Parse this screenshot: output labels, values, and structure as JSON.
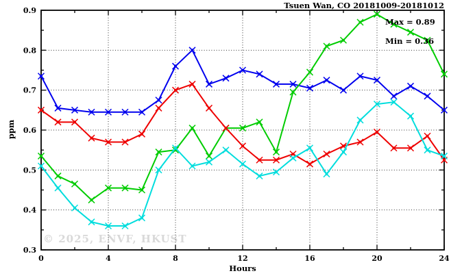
{
  "title": "Tsuen Wan, CO 20181009-20181012",
  "watermark": "© 2025, ENVF, HKUST",
  "chart_data": {
    "type": "line",
    "title": "Tsuen Wan, CO 20181009-20181012",
    "xlabel": "Hours",
    "ylabel": "ppm",
    "xlim": [
      0,
      24
    ],
    "ylim": [
      0.3,
      0.9
    ],
    "x_major_ticks": [
      0,
      4,
      8,
      12,
      16,
      20,
      24
    ],
    "x_minor_interval": 2,
    "y_major_ticks": [
      0.3,
      0.4,
      0.5,
      0.6,
      0.7,
      0.8,
      0.9
    ],
    "y_minor_interval": 0.05,
    "grid": {
      "style": "dotted",
      "x_at": [
        4,
        8,
        12,
        16,
        20
      ],
      "y_at": [
        0.4,
        0.5,
        0.6,
        0.7,
        0.8
      ]
    },
    "legend_position": "none",
    "annotations": {
      "max_text": "Max = 0.89",
      "min_text": "Min = 0.36",
      "max_value": 0.89,
      "min_value": 0.36
    },
    "x": [
      0,
      1,
      2,
      3,
      4,
      5,
      6,
      7,
      8,
      9,
      10,
      11,
      12,
      13,
      14,
      15,
      16,
      17,
      18,
      19,
      20,
      21,
      22,
      23,
      24
    ],
    "series": [
      {
        "name": "blue",
        "color": "#0000ee",
        "values": [
          0.735,
          0.655,
          0.65,
          0.645,
          0.645,
          0.645,
          0.645,
          0.675,
          0.76,
          0.8,
          0.715,
          0.73,
          0.75,
          0.74,
          0.715,
          0.715,
          0.705,
          0.725,
          0.7,
          0.735,
          0.725,
          0.685,
          0.71,
          0.685,
          0.65
        ]
      },
      {
        "name": "green",
        "color": "#00cc00",
        "values": [
          0.535,
          0.485,
          0.465,
          0.425,
          0.455,
          0.455,
          0.45,
          0.545,
          0.55,
          0.605,
          0.535,
          0.605,
          0.605,
          0.62,
          0.545,
          0.695,
          0.745,
          0.81,
          0.825,
          0.87,
          0.89,
          0.865,
          0.845,
          0.825,
          0.74
        ]
      },
      {
        "name": "red",
        "color": "#ee0000",
        "values": [
          0.65,
          0.62,
          0.62,
          0.58,
          0.57,
          0.57,
          0.59,
          0.655,
          0.7,
          0.715,
          0.655,
          0.605,
          0.56,
          0.525,
          0.525,
          0.54,
          0.515,
          0.54,
          0.56,
          0.57,
          0.595,
          0.555,
          0.555,
          0.585,
          0.525
        ]
      },
      {
        "name": "cyan",
        "color": "#00dddd",
        "values": [
          0.51,
          0.455,
          0.405,
          0.37,
          0.36,
          0.36,
          0.38,
          0.5,
          0.555,
          0.51,
          0.52,
          0.55,
          0.515,
          0.485,
          0.495,
          0.53,
          0.555,
          0.49,
          0.545,
          0.625,
          0.665,
          0.67,
          0.635,
          0.55,
          0.535
        ]
      }
    ]
  }
}
